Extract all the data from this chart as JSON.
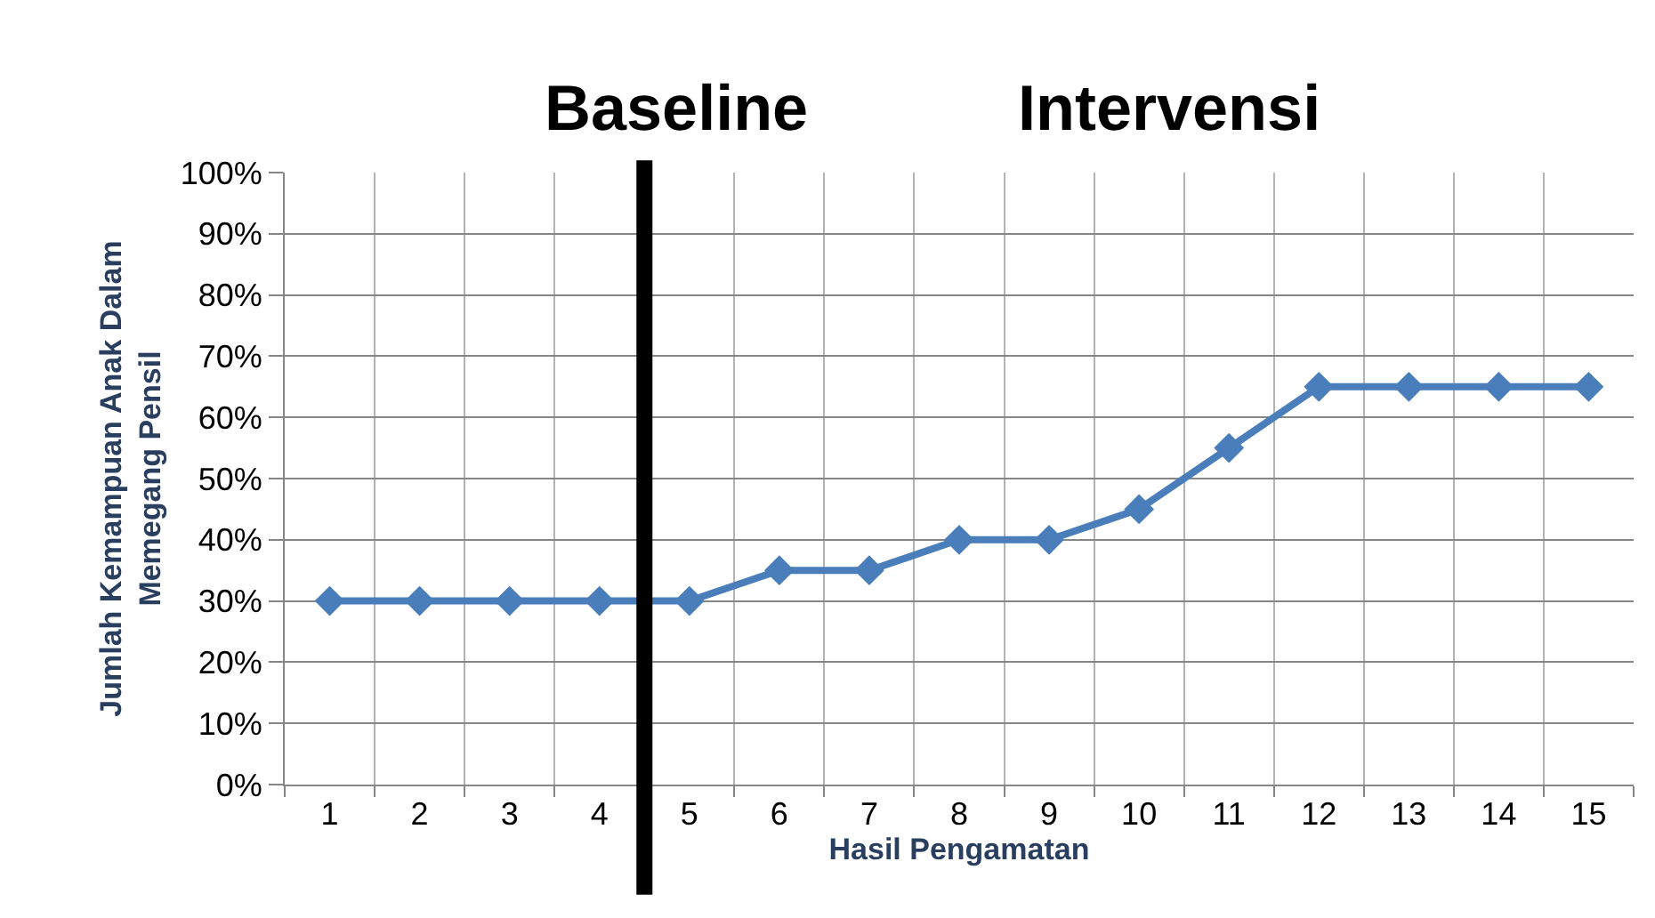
{
  "chart_data": {
    "type": "line",
    "xlabel": "Hasil Pengamatan",
    "ylabel": "Jumlah Kemampuan Anak Dalam\nMemegang Pensil",
    "annotations": [
      "Baseline",
      "Intervensi"
    ],
    "x": [
      1,
      2,
      3,
      4,
      5,
      6,
      7,
      8,
      9,
      10,
      11,
      12,
      13,
      14,
      15
    ],
    "series": [
      {
        "color": "#4a7ebb",
        "values": [
          30,
          30,
          30,
          30,
          30,
          35,
          35,
          40,
          40,
          45,
          55,
          65,
          65,
          65,
          65
        ]
      }
    ],
    "xlim": [
      0.5,
      15.5
    ],
    "xticks": [
      1,
      2,
      3,
      4,
      5,
      6,
      7,
      8,
      9,
      10,
      11,
      12,
      13,
      14,
      15
    ],
    "ylim": [
      0,
      100
    ],
    "yticks": [
      {
        "value": 0,
        "label": "0%"
      },
      {
        "value": 10,
        "label": "10%"
      },
      {
        "value": 20,
        "label": "20%"
      },
      {
        "value": 30,
        "label": "30%"
      },
      {
        "value": 40,
        "label": "40%"
      },
      {
        "value": 50,
        "label": "50%"
      },
      {
        "value": 60,
        "label": "60%"
      },
      {
        "value": 70,
        "label": "70%"
      },
      {
        "value": 80,
        "label": "80%"
      },
      {
        "value": 90,
        "label": "90%"
      },
      {
        "value": 100,
        "label": "100%"
      }
    ],
    "ref_lines": [
      {
        "axis": "x",
        "value": 4.5,
        "color": "#000000",
        "line_style": "solid"
      }
    ],
    "grid": true,
    "marker": "diamond",
    "line_style": "solid"
  }
}
